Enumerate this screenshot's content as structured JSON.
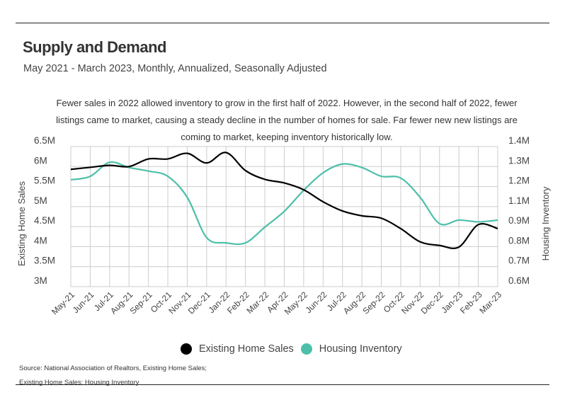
{
  "title": "Supply and Demand",
  "subtitle": "May 2021 - March 2023, Monthly, Annualized, Seasonally Adjusted",
  "annotation": [
    "Fewer sales in 2022 allowed inventory to grow in the first half of 2022. However, in the second half of 2022, fewer",
    "listings came to market, causing a steady decline in the number of homes for sale. Far fewer new new listings are",
    "coming to market, keeping inventory historically low."
  ],
  "source": [
    "Source:  National Association of Realtors, Existing Home Sales;",
    "Existing Home Sales: Housing Inventory"
  ],
  "colors": {
    "sales": "#000000",
    "inventory": "#4dbfa8",
    "grid": "#cccccc"
  },
  "chart_data": {
    "type": "line",
    "categories": [
      "May-21",
      "Jun-21",
      "Jul-21",
      "Aug-21",
      "Sep-21",
      "Oct-21",
      "Nov-21",
      "Dec-21",
      "Jan-22",
      "Feb-22",
      "Mar-22",
      "Apr-22",
      "May-22",
      "Jun-22",
      "Jul-22",
      "Aug-22",
      "Sep-22",
      "Oct-22",
      "Nov-22",
      "Dec-22",
      "Jan-23",
      "Feb-23",
      "Mar-23"
    ],
    "ylabel_left": "Existing Home Sales",
    "ylabel_right": "Housing Inventory",
    "ylim_left": [
      3,
      6.5
    ],
    "ylim_right": [
      0.6,
      1.4
    ],
    "yticks_left": [
      "6.5M",
      "6M",
      "5.5M",
      "5M",
      "4.5M",
      "4M",
      "3.5M",
      "3M"
    ],
    "yticks_right": [
      "1.4M",
      "1.3M",
      "1.2M",
      "1.1M",
      "0.9M",
      "0.8M",
      "0.7M",
      "0.6M"
    ],
    "grid": true,
    "legend_position": "bottom",
    "series": [
      {
        "name": "Existing Home Sales",
        "axis": "left",
        "unit": "M",
        "values": [
          5.93,
          5.98,
          6.03,
          6.0,
          6.19,
          6.19,
          6.33,
          6.09,
          6.35,
          5.9,
          5.68,
          5.59,
          5.42,
          5.12,
          4.89,
          4.77,
          4.71,
          4.45,
          4.12,
          4.03,
          3.99,
          4.55,
          4.45
        ]
      },
      {
        "name": "Housing Inventory",
        "axis": "right",
        "unit": "M",
        "values": [
          1.21,
          1.23,
          1.31,
          1.28,
          1.26,
          1.23,
          1.11,
          0.88,
          0.85,
          0.85,
          0.94,
          1.03,
          1.15,
          1.25,
          1.3,
          1.28,
          1.23,
          1.22,
          1.11,
          0.96,
          0.98,
          0.97,
          0.98
        ]
      }
    ]
  }
}
